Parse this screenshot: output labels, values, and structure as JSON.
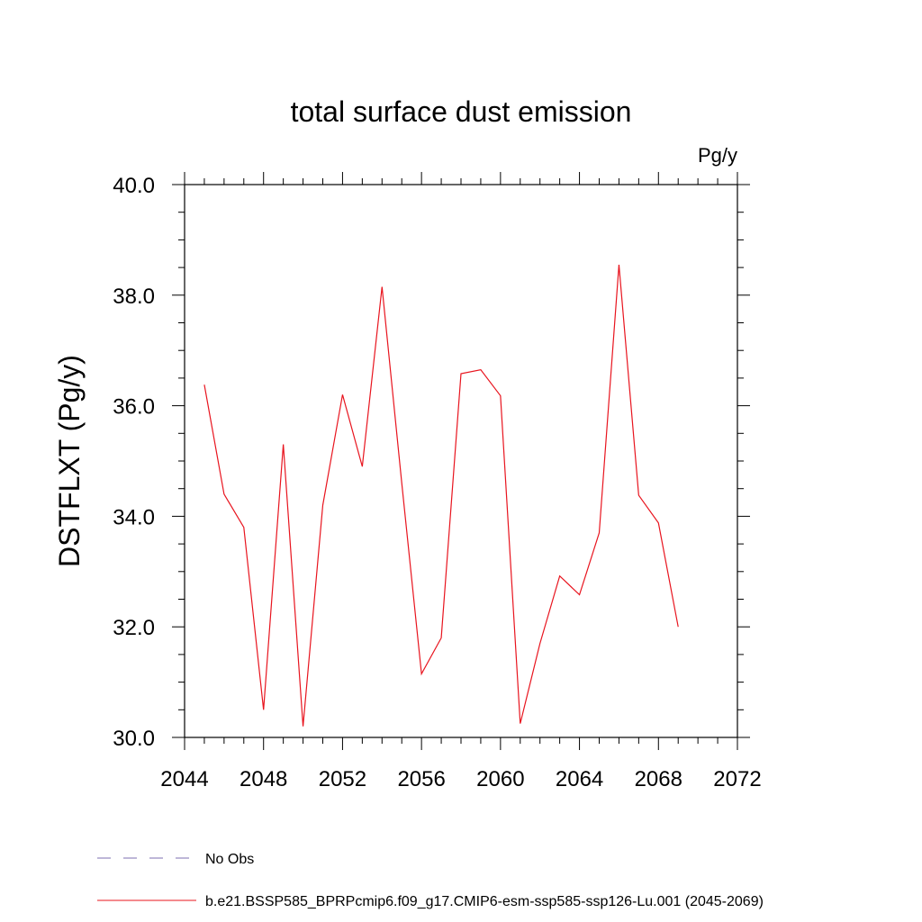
{
  "chart_data": {
    "type": "line",
    "title": "total surface dust emission",
    "units": "Pg/y",
    "ylabel": "DSTFLXT  (Pg/y)",
    "xlabel": "",
    "xlim": [
      2044,
      2072
    ],
    "ylim": [
      30.0,
      40.0
    ],
    "x_ticks": [
      "2044",
      "2048",
      "2052",
      "2056",
      "2060",
      "2064",
      "2068",
      "2072"
    ],
    "y_ticks": [
      "30.0",
      "32.0",
      "34.0",
      "36.0",
      "38.0",
      "40.0"
    ],
    "grid": false,
    "legend_position": "bottom",
    "series": [
      {
        "name": "b.e21.BSSP585_BPRPcmip6.f09_g17.CMIP6-esm-ssp585-ssp126-Lu.001 (2045-2069)",
        "color": "#e8141e",
        "x": [
          2045,
          2046,
          2047,
          2048,
          2049,
          2050,
          2051,
          2052,
          2053,
          2054,
          2055,
          2056,
          2057,
          2058,
          2059,
          2060,
          2061,
          2062,
          2063,
          2064,
          2065,
          2066,
          2067,
          2068,
          2069
        ],
        "y": [
          36.38,
          34.4,
          33.8,
          30.5,
          35.3,
          30.2,
          34.2,
          36.2,
          34.9,
          38.15,
          34.6,
          31.15,
          31.8,
          36.58,
          36.65,
          36.18,
          30.25,
          31.7,
          32.92,
          32.58,
          33.7,
          38.55,
          34.38,
          33.88,
          32.0
        ]
      }
    ],
    "legend": [
      {
        "label": "No Obs",
        "style": "dashed",
        "color": "#7d6fb0"
      },
      {
        "label": "b.e21.BSSP585_BPRPcmip6.f09_g17.CMIP6-esm-ssp585-ssp126-Lu.001 (2045-2069)",
        "style": "solid",
        "color": "#e8141e"
      }
    ]
  }
}
